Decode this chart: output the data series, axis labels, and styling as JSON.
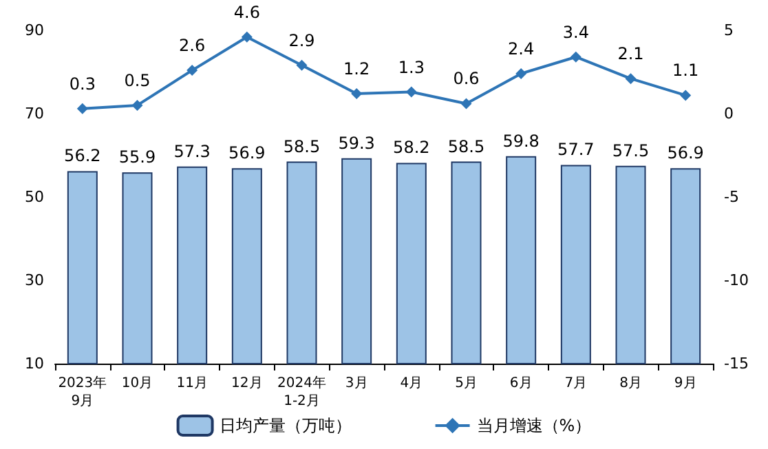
{
  "chart_data": {
    "type": "bar",
    "categories": [
      "2023年\n9月",
      "10月",
      "11月",
      "12月",
      "2024年\n1-2月",
      "3月",
      "4月",
      "5月",
      "6月",
      "7月",
      "8月",
      "9月"
    ],
    "series": [
      {
        "name": "日均产量（万吨）",
        "color": "#9dc3e6",
        "values": [
          56.2,
          55.9,
          57.3,
          56.9,
          58.5,
          59.3,
          58.2,
          58.5,
          59.8,
          57.7,
          57.5,
          56.9
        ]
      },
      {
        "name": "当月增速（%）",
        "type": "line",
        "axis": "y2",
        "color": "#2e75b6",
        "values": [
          0.3,
          0.5,
          2.6,
          4.6,
          2.9,
          1.2,
          1.3,
          0.6,
          2.4,
          3.4,
          2.1,
          1.1
        ]
      }
    ],
    "ylim": [
      10,
      90
    ],
    "yticks": [
      10,
      30,
      50,
      70,
      90
    ],
    "y2lim": [
      -15,
      5
    ],
    "y2ticks": [
      -15,
      -10,
      -5,
      0,
      5
    ],
    "data_labels": true,
    "legend": "bottom",
    "marker": "diamond",
    "line_style": "solid",
    "grid": false
  }
}
